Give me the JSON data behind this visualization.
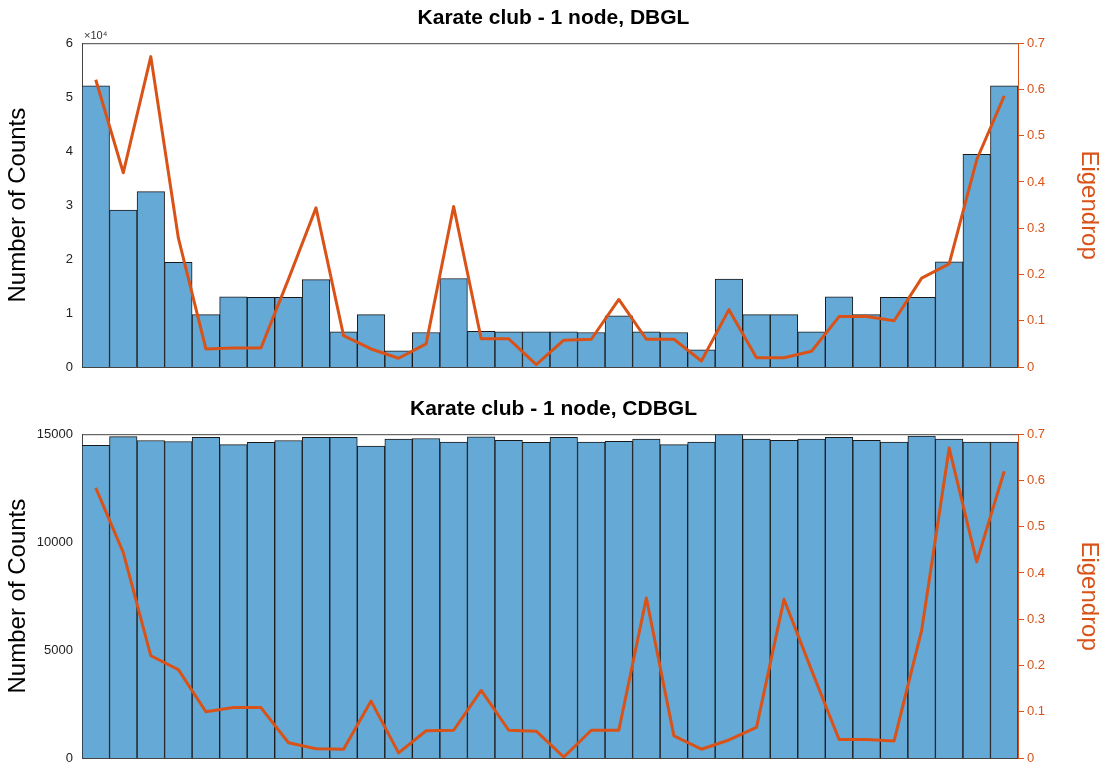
{
  "chart_data": [
    {
      "type": "bar",
      "title": "Karate club - 1 node, DBGL",
      "ylabel": "Number of Counts",
      "y2label": "Eigendrop",
      "categories": [
        null,
        null,
        null,
        null,
        null,
        null,
        null,
        null,
        null,
        null,
        null,
        null,
        null,
        null,
        null,
        null,
        null,
        null,
        null,
        null,
        null,
        null,
        null,
        null,
        null,
        null,
        null,
        null,
        null,
        null,
        null,
        null,
        null,
        null
      ],
      "series": [
        {
          "color": "#65a9d7",
          "values": [
            5.21,
            2.91,
            3.25,
            1.94,
            0.97,
            1.3,
            1.29,
            1.29,
            1.62,
            0.65,
            0.97,
            0.3,
            0.64,
            1.64,
            0.66,
            0.65,
            0.65,
            0.65,
            0.64,
            0.95,
            0.65,
            0.64,
            0.32,
            1.63,
            0.97,
            0.97,
            0.65,
            1.3,
            0.97,
            1.29,
            1.29,
            1.95,
            3.94,
            5.21
          ]
        },
        {
          "type": "line",
          "axis": "y2",
          "color": "#d95319",
          "values": [
            0.621,
            0.42,
            0.671,
            0.279,
            0.039,
            0.041,
            0.041,
            0.19,
            0.344,
            0.068,
            0.039,
            0.019,
            0.05,
            0.347,
            0.061,
            0.061,
            0.005,
            0.058,
            0.06,
            0.146,
            0.06,
            0.06,
            0.013,
            0.124,
            0.02,
            0.02,
            0.034,
            0.109,
            0.109,
            0.1,
            0.192,
            0.223,
            0.448,
            0.586
          ]
        }
      ],
      "ylim": [
        0,
        6
      ],
      "yticks": [
        0,
        1,
        2,
        3,
        4,
        5,
        6
      ],
      "y2lim": [
        0,
        0.7
      ],
      "y2ticks": [
        0,
        0.1,
        0.2,
        0.3,
        0.4,
        0.5,
        0.6,
        0.7
      ],
      "annotations": [
        "×10⁴"
      ],
      "legend": false,
      "grid": false,
      "marker": "none"
    },
    {
      "type": "bar",
      "title": "Karate club - 1 node, CDBGL",
      "ylabel": "Number of Counts",
      "y2label": "Eigendrop",
      "categories": [
        null,
        null,
        null,
        null,
        null,
        null,
        null,
        null,
        null,
        null,
        null,
        null,
        null,
        null,
        null,
        null,
        null,
        null,
        null,
        null,
        null,
        null,
        null,
        null,
        null,
        null,
        null,
        null,
        null,
        null,
        null,
        null,
        null,
        null
      ],
      "series": [
        {
          "color": "#65a9d7",
          "values": [
            14480,
            14890,
            14710,
            14660,
            14850,
            14520,
            14620,
            14710,
            14850,
            14850,
            14450,
            14770,
            14800,
            14630,
            14880,
            14720,
            14620,
            14860,
            14630,
            14670,
            14770,
            14520,
            14640,
            15000,
            14770,
            14720,
            14770,
            14860,
            14720,
            14630,
            14910,
            14770,
            14640,
            14640
          ]
        },
        {
          "type": "line",
          "axis": "y2",
          "color": "#d95319",
          "values": [
            0.584,
            0.444,
            0.221,
            0.191,
            0.1,
            0.109,
            0.109,
            0.033,
            0.02,
            0.019,
            0.123,
            0.011,
            0.059,
            0.06,
            0.146,
            0.06,
            0.058,
            0.002,
            0.06,
            0.06,
            0.346,
            0.048,
            0.019,
            0.039,
            0.066,
            0.343,
            0.19,
            0.04,
            0.04,
            0.037,
            0.276,
            0.67,
            0.424,
            0.62
          ]
        }
      ],
      "ylim": [
        0,
        15000
      ],
      "yticks": [
        0,
        5000,
        10000,
        15000
      ],
      "y2lim": [
        0,
        0.7
      ],
      "y2ticks": [
        0,
        0.1,
        0.2,
        0.3,
        0.4,
        0.5,
        0.6,
        0.7
      ],
      "legend": false,
      "grid": false,
      "marker": "none"
    }
  ]
}
